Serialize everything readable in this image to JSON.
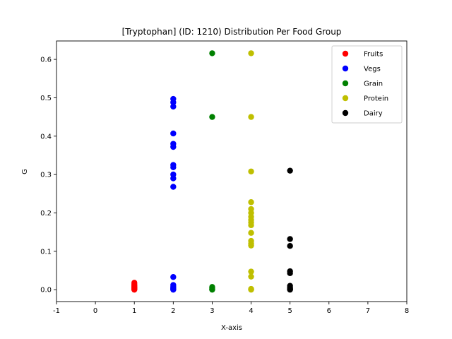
{
  "chart_data": {
    "type": "scatter",
    "title": "[Tryptophan] (ID: 1210) Distribution Per Food Group",
    "xlabel": "X-axis",
    "ylabel": "G",
    "xlim": [
      -1,
      8
    ],
    "ylim": [
      -0.031,
      0.648
    ],
    "xticks": [
      -1,
      0,
      1,
      2,
      3,
      4,
      5,
      6,
      7,
      8
    ],
    "yticks": [
      0.0,
      0.1,
      0.2,
      0.3,
      0.4,
      0.5,
      0.6
    ],
    "ytick_labels": [
      "0.0",
      "0.1",
      "0.2",
      "0.3",
      "0.4",
      "0.5",
      "0.6"
    ],
    "grid": false,
    "legend_position": "top-right",
    "series": [
      {
        "name": "Fruits",
        "color": "#ff0000",
        "x": [
          1,
          1,
          1,
          1,
          1,
          1,
          1,
          1,
          1,
          1
        ],
        "y": [
          0.018,
          0.014,
          0.011,
          0.009,
          0.007,
          0.005,
          0.004,
          0.003,
          0.001,
          0.0
        ]
      },
      {
        "name": "Vegs",
        "color": "#0000ff",
        "x": [
          2,
          2,
          2,
          2,
          2,
          2,
          2,
          2,
          2,
          2,
          2,
          2,
          2,
          2,
          2,
          2,
          2,
          2
        ],
        "y": [
          0.497,
          0.488,
          0.477,
          0.407,
          0.38,
          0.372,
          0.325,
          0.319,
          0.3,
          0.29,
          0.268,
          0.033,
          0.012,
          0.008,
          0.005,
          0.003,
          0.001,
          0.0
        ]
      },
      {
        "name": "Grain",
        "color": "#008000",
        "x": [
          3,
          3,
          3,
          3,
          3,
          3
        ],
        "y": [
          0.616,
          0.45,
          0.007,
          0.004,
          0.001,
          0.0
        ]
      },
      {
        "name": "Protein",
        "color": "#bfbf00",
        "x": [
          4,
          4,
          4,
          4,
          4,
          4,
          4,
          4,
          4,
          4,
          4,
          4,
          4,
          4,
          4,
          4,
          4,
          4,
          4
        ],
        "y": [
          0.616,
          0.45,
          0.308,
          0.228,
          0.21,
          0.2,
          0.19,
          0.182,
          0.175,
          0.168,
          0.148,
          0.127,
          0.12,
          0.115,
          0.047,
          0.034,
          0.002,
          0.001,
          0.0
        ]
      },
      {
        "name": "Dairy",
        "color": "#000000",
        "x": [
          5,
          5,
          5,
          5,
          5,
          5,
          5,
          5,
          5,
          5
        ],
        "y": [
          0.31,
          0.132,
          0.114,
          0.048,
          0.043,
          0.01,
          0.005,
          0.002,
          0.001,
          0.0
        ]
      }
    ]
  }
}
